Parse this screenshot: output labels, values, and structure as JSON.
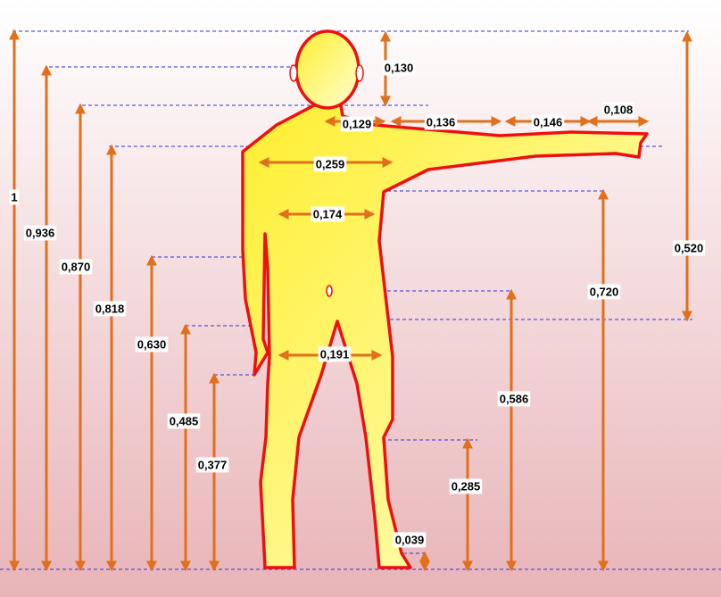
{
  "labels": [
    "1",
    "0,936",
    "0,870",
    "0,818",
    "0,630",
    "0,485",
    "0,377",
    "0,586",
    "0,720",
    "0,285",
    "0,039",
    "0,130",
    "0,520",
    "0,129",
    "0,136",
    "0,146",
    "0,108",
    "0,259",
    "0,174",
    "0,191"
  ]
}
